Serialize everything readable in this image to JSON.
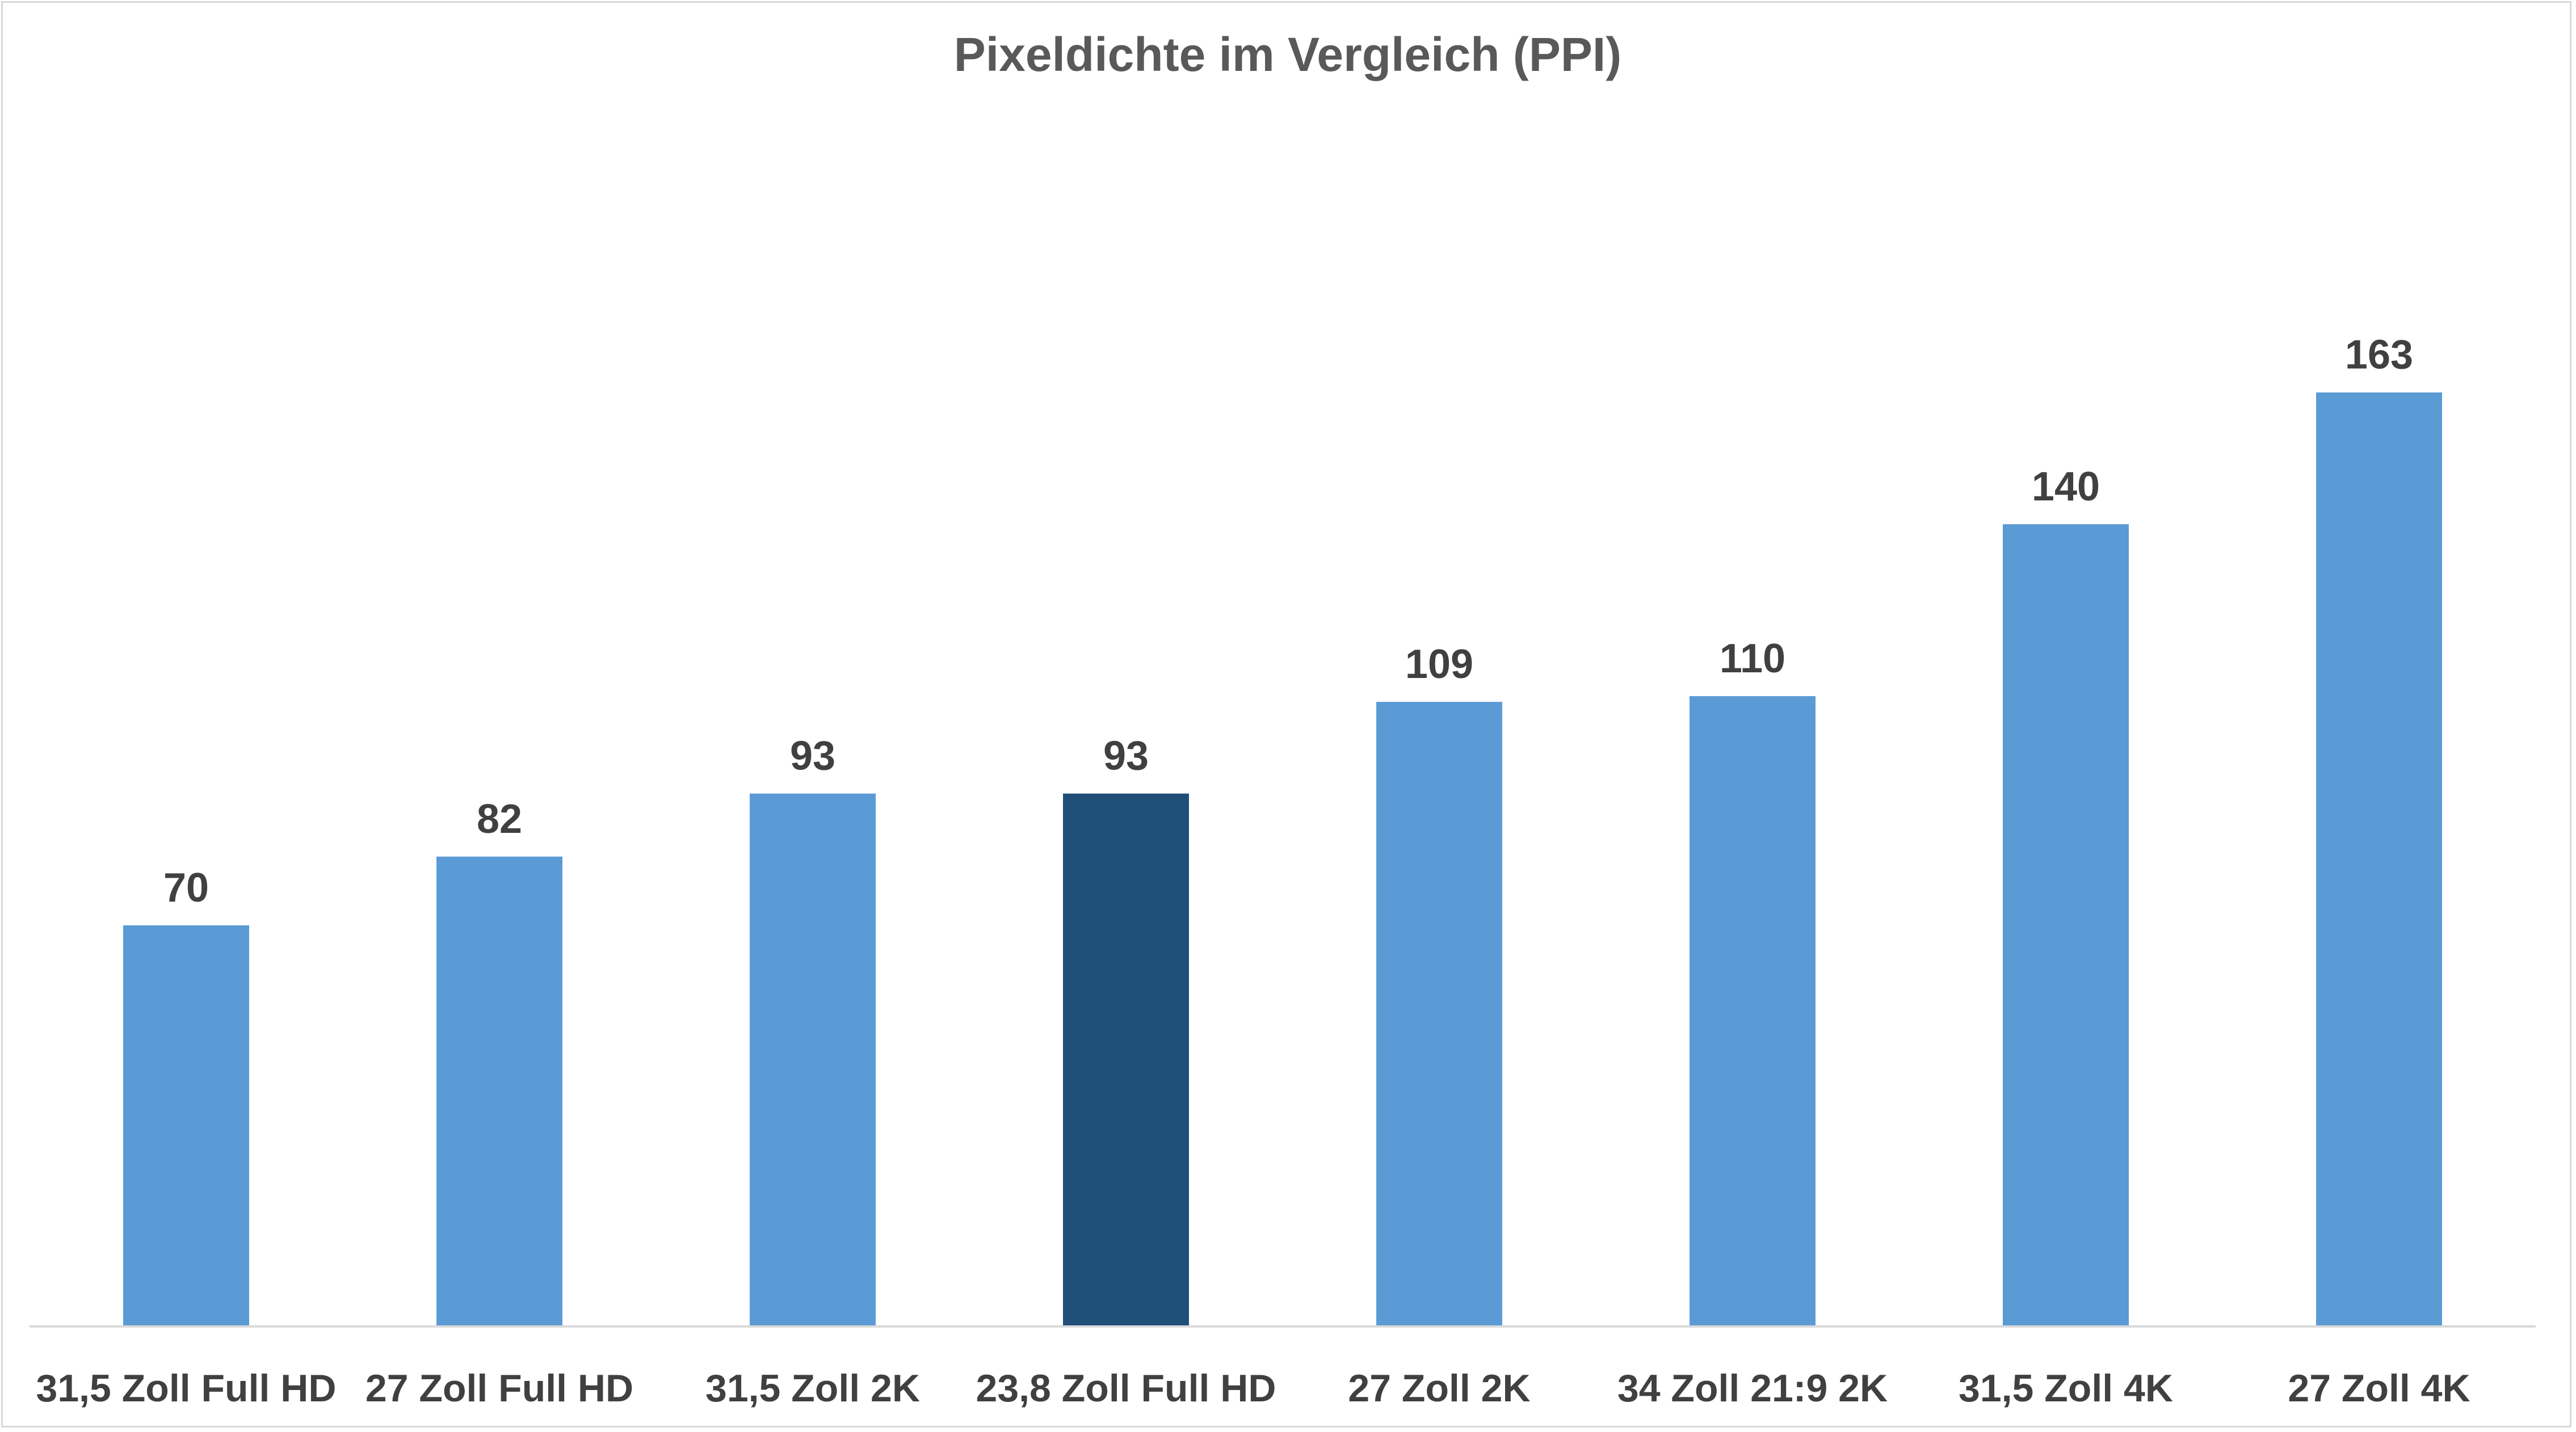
{
  "chart_data": {
    "type": "bar",
    "title": "Pixeldichte im Vergleich (PPI)",
    "xlabel": "",
    "ylabel": "",
    "categories": [
      "31,5 Zoll Full HD",
      "27 Zoll Full HD",
      "31,5 Zoll 2K",
      "23,8 Zoll Full HD",
      "27 Zoll 2K",
      "34 Zoll 21:9 2K",
      "31,5 Zoll 4K",
      "27 Zoll 4K"
    ],
    "values": [
      70,
      82,
      93,
      93,
      109,
      110,
      140,
      163
    ],
    "ylim": [
      0,
      180
    ],
    "grid": false,
    "legend": "none",
    "colors": {
      "bar": "#5b9bd5",
      "highlight": "#1f4e79",
      "axis": "#d9d9d9",
      "title": "#595959",
      "labels": "#404040"
    },
    "highlight_index": 3
  }
}
